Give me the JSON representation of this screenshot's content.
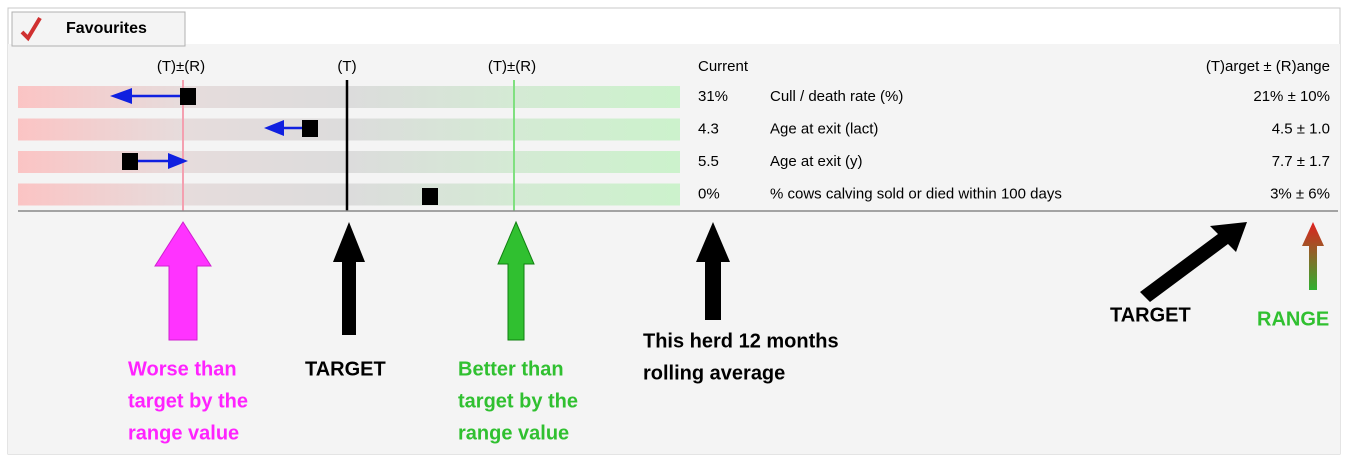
{
  "tab": "Favourites",
  "header": {
    "worse": "(T)±(R)",
    "target": "(T)",
    "better": "(T)±(R)",
    "current": "Current",
    "target_range": "(T)arget ± (R)ange"
  },
  "rows": [
    {
      "current": "31%",
      "label": "Cull / death rate (%)",
      "target": "21% ± 10%"
    },
    {
      "current": "4.3",
      "label": "Age at exit (lact)",
      "target": "4.5 ± 1.0"
    },
    {
      "current": "5.5",
      "label": "Age at exit (y)",
      "target": "7.7 ± 1.7"
    },
    {
      "current": "0%",
      "label": "% cows calving sold or died within 100 days",
      "target": "3% ± 6%"
    }
  ],
  "annotations": {
    "worse": [
      "Worse than",
      "target by the",
      "range value"
    ],
    "target": "TARGET",
    "better": [
      "Better than",
      "target by the",
      "range value"
    ],
    "current": [
      "This herd 12 months",
      "rolling average"
    ],
    "target_right": "TARGET",
    "range": "RANGE"
  }
}
